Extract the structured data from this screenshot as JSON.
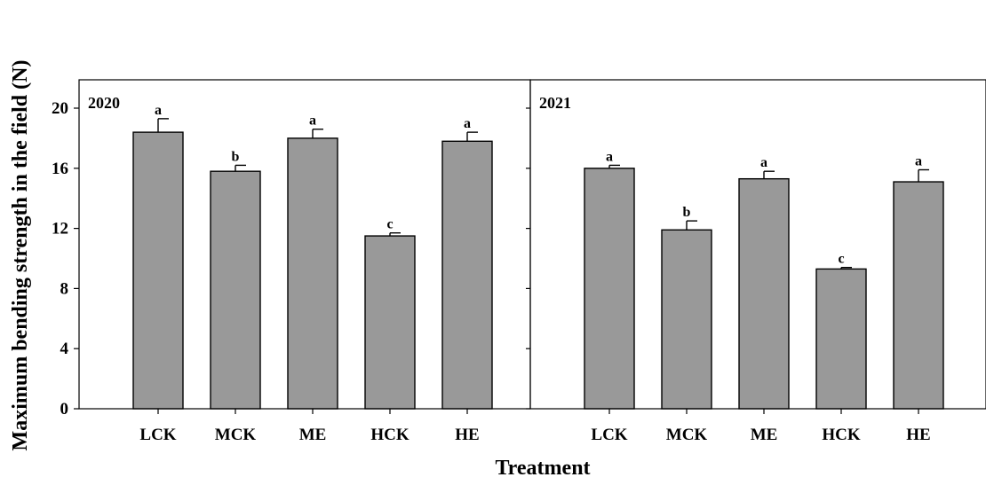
{
  "chart_data": [
    {
      "type": "bar",
      "panel_label": "2020",
      "categories": [
        "LCK",
        "MCK",
        "ME",
        "HCK",
        "HE"
      ],
      "values": [
        18.4,
        15.8,
        18.0,
        11.5,
        17.8
      ],
      "errors": [
        0.9,
        0.4,
        0.6,
        0.2,
        0.6
      ],
      "significance": [
        "a",
        "b",
        "a",
        "c",
        "a"
      ],
      "ylim": [
        0,
        20
      ],
      "yticks": [
        "0",
        "4",
        "8",
        "12",
        "16",
        "20"
      ],
      "bar_color": "#999999",
      "bar_stroke": "#000000"
    },
    {
      "type": "bar",
      "panel_label": "2021",
      "categories": [
        "LCK",
        "MCK",
        "ME",
        "HCK",
        "HE"
      ],
      "values": [
        16.0,
        11.9,
        15.3,
        9.3,
        15.1
      ],
      "errors": [
        0.2,
        0.6,
        0.5,
        0.1,
        0.8
      ],
      "significance": [
        "a",
        "b",
        "a",
        "c",
        "a"
      ],
      "ylim": [
        0,
        20
      ],
      "yticks": [
        "0",
        "4",
        "8",
        "12",
        "16",
        "20"
      ],
      "bar_color": "#999999",
      "bar_stroke": "#000000"
    }
  ],
  "axes": {
    "ylabel": "Maximum bending strength in the field (N)",
    "xlabel": "Treatment"
  }
}
